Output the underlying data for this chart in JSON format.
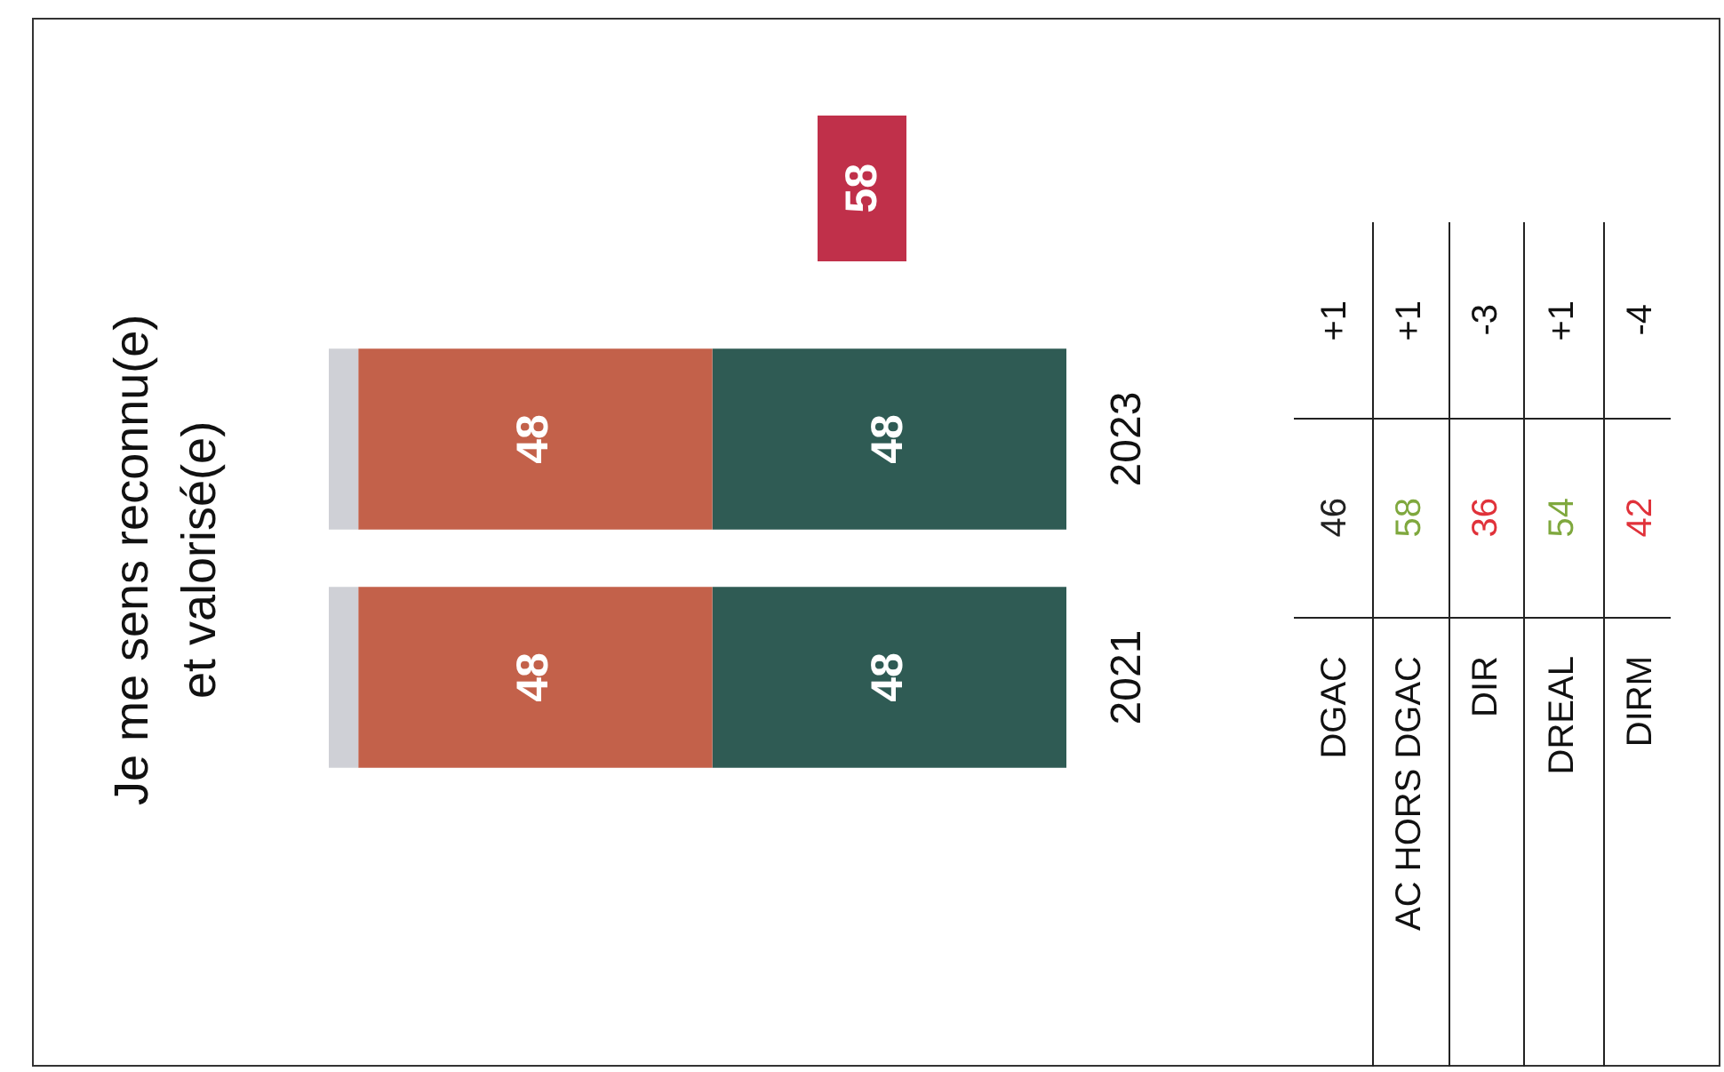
{
  "chart_data": [
    {
      "type": "bar",
      "title": "Je me sens reconnu(e) et valorisé(e)",
      "orientation": "horizontal",
      "categories": [
        "2023",
        "2021"
      ],
      "stacked": true,
      "tick_labels": "y",
      "series": [
        {
          "color": "#cfd0d6",
          "values": [
            4,
            4
          ]
        },
        {
          "color": "#c3614a",
          "values": [
            48,
            48
          ],
          "value_labels": [
            "48",
            "48"
          ]
        },
        {
          "color": "#2f5b54",
          "values": [
            48,
            48
          ],
          "value_labels": [
            "48",
            "48"
          ]
        }
      ],
      "annotations": [
        "58"
      ]
    },
    {
      "type": "other",
      "categories": [
        "DGAC",
        "AC HORS DGAC",
        "DIR",
        "DREAL",
        "DIRM"
      ],
      "data_labels": true,
      "series": [
        {
          "values": [
            46,
            58,
            36,
            54,
            42
          ],
          "colors": [
            "#222222",
            "#7fa83e",
            "#e0323a",
            "#7fa83e",
            "#e0323a"
          ]
        },
        {
          "values": [
            1,
            1,
            -3,
            1,
            -4
          ],
          "value_labels": [
            "+1",
            "+1",
            "-3",
            "+1",
            "-4"
          ]
        }
      ]
    }
  ]
}
